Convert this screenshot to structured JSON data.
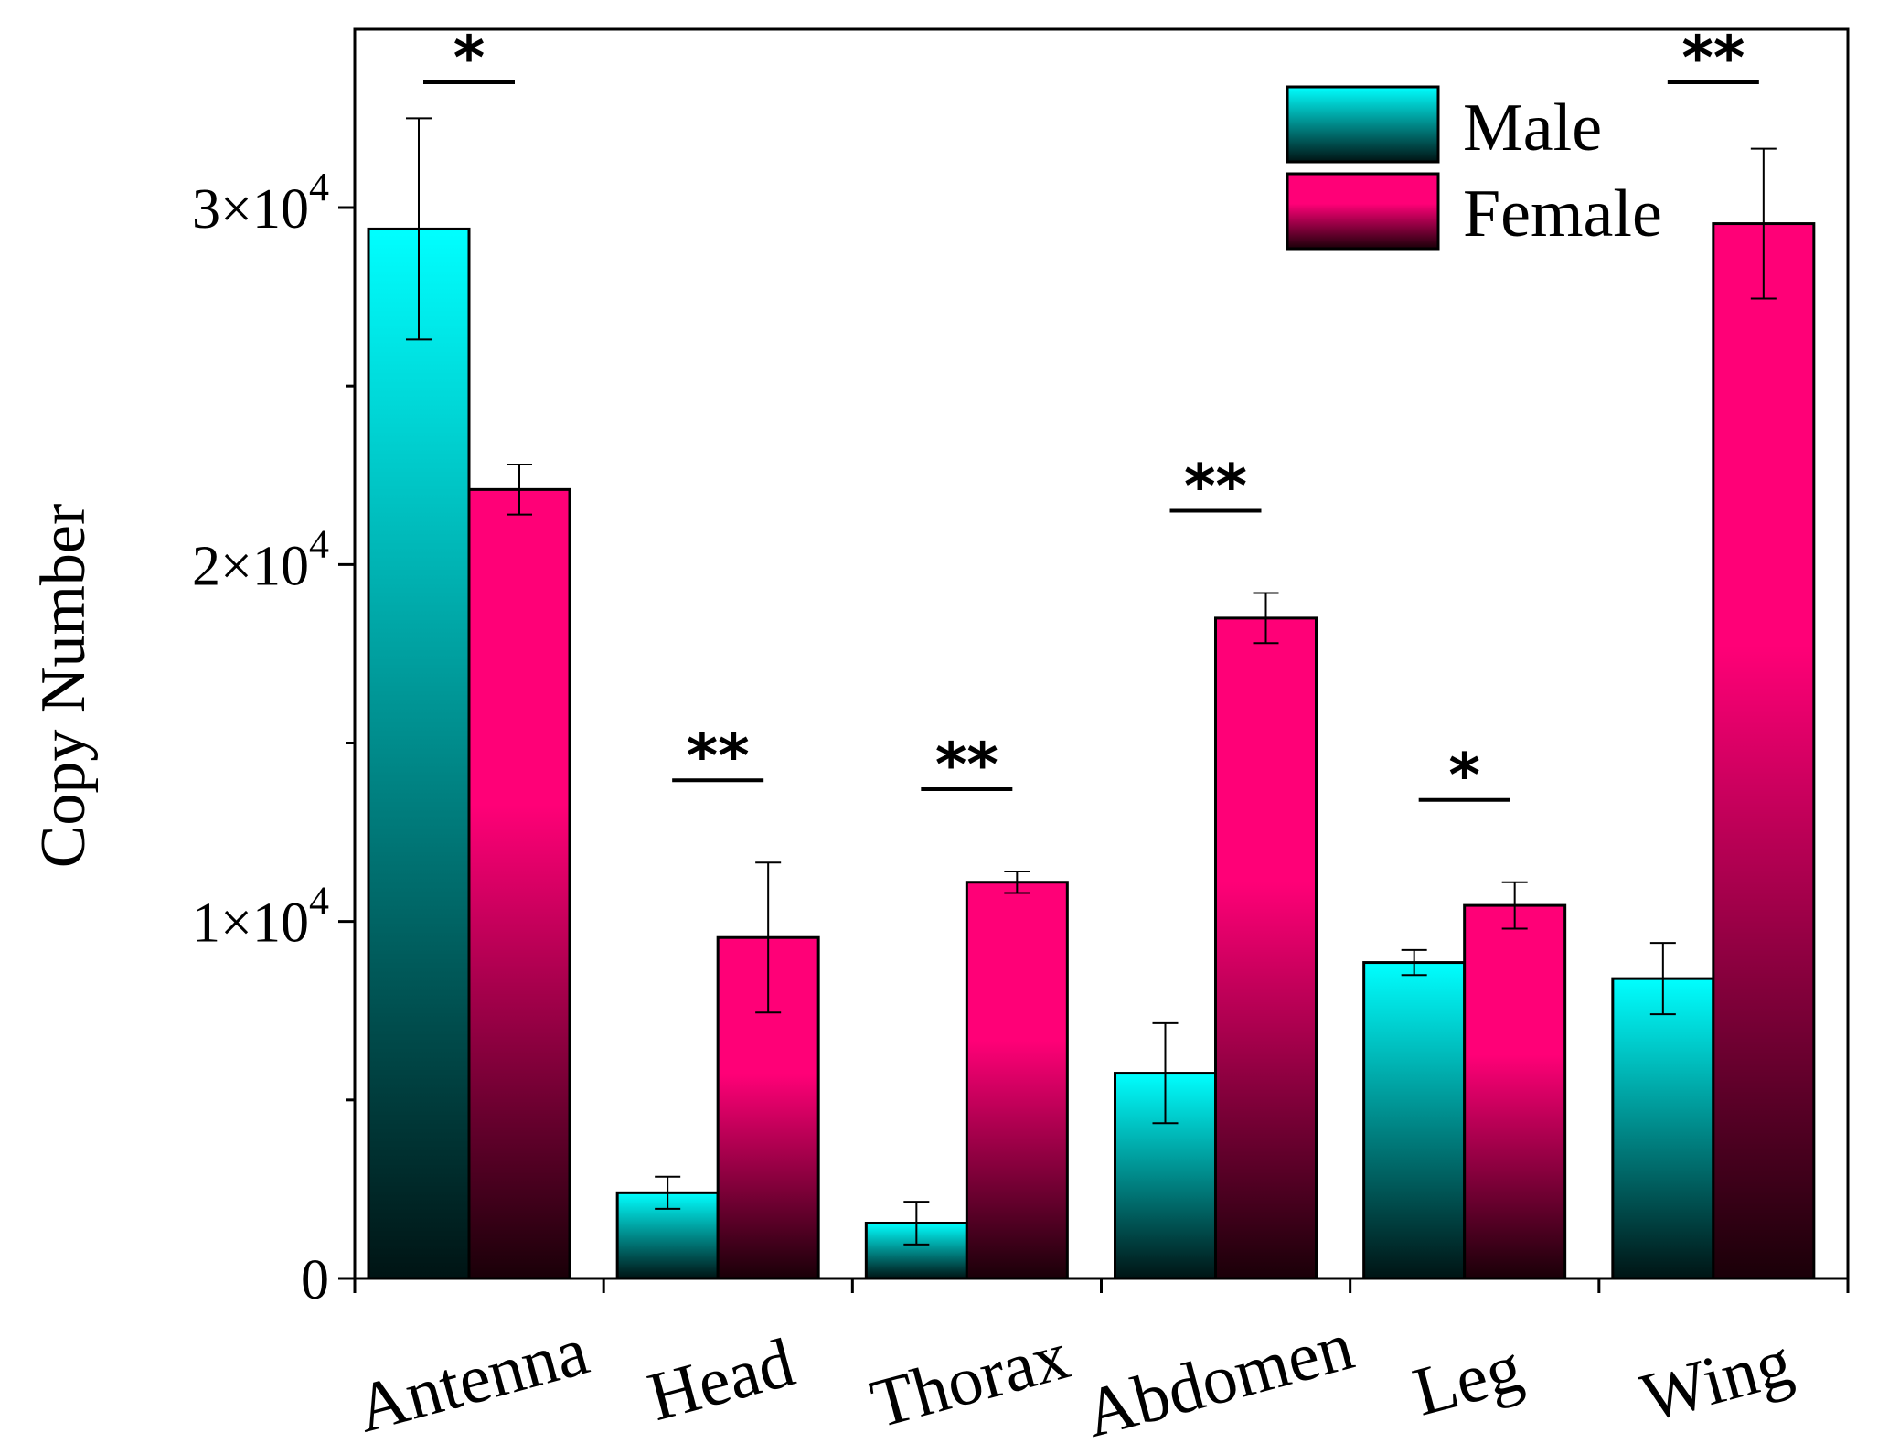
{
  "chart_data": {
    "type": "bar",
    "ylabel": "Copy Number",
    "xlabel": "",
    "ylim": [
      0,
      35000
    ],
    "yticks": [
      {
        "value": 0,
        "base": "0",
        "exp": ""
      },
      {
        "value": 10000,
        "base": "1×10",
        "exp": "4"
      },
      {
        "value": 20000,
        "base": "2×10",
        "exp": "4"
      },
      {
        "value": 30000,
        "base": "3×10",
        "exp": "4"
      }
    ],
    "categories": [
      "Antenna",
      "Head",
      "Thorax",
      "Abdomen",
      "Leg",
      "Wing"
    ],
    "series": [
      {
        "name": "Male",
        "values": [
          29400,
          2400,
          1550,
          5750,
          8850,
          8400
        ],
        "errors": [
          3100,
          450,
          600,
          1400,
          350,
          1000
        ]
      },
      {
        "name": "Female",
        "values": [
          22100,
          9550,
          11100,
          18500,
          10450,
          29550
        ],
        "errors": [
          700,
          2100,
          300,
          700,
          650,
          2100
        ]
      }
    ],
    "significance": [
      "*",
      "**",
      "**",
      "**",
      "*",
      "**"
    ],
    "legend": {
      "position": "top-right",
      "entries": [
        "Male",
        "Female"
      ]
    },
    "grid": false
  },
  "colors": {
    "male_top": "#00ffff",
    "male_bottom": "#001414",
    "female_top": "#ff0077",
    "female_bottom": "#1a0008",
    "axis": "#000000"
  }
}
